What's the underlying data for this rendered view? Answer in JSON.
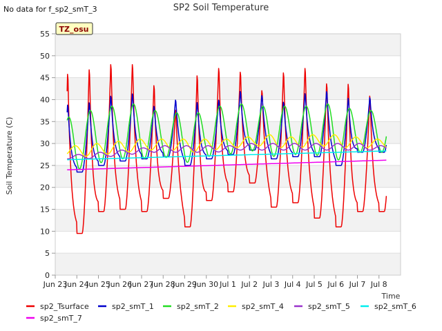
{
  "chart_data": {
    "type": "line",
    "title": "SP2 Soil Temperature",
    "no_data_note": "No data for f_sp2_smT_3",
    "badge": "TZ_osu",
    "xlabel": "Time",
    "ylabel": "Soil Temperature (C)",
    "xlim": [
      0,
      16
    ],
    "ylim": [
      0,
      55
    ],
    "yticks": [
      0,
      5,
      10,
      15,
      20,
      25,
      30,
      35,
      40,
      45,
      50,
      55
    ],
    "xticks": [
      {
        "value": 0,
        "label": "Jun 23"
      },
      {
        "value": 1,
        "label": "Jun 24"
      },
      {
        "value": 2,
        "label": "Jun 25"
      },
      {
        "value": 3,
        "label": "Jun 26"
      },
      {
        "value": 4,
        "label": "Jun 27"
      },
      {
        "value": 5,
        "label": "Jun 28"
      },
      {
        "value": 6,
        "label": "Jun 29"
      },
      {
        "value": 7,
        "label": "Jun 30"
      },
      {
        "value": 8,
        "label": "Jul 1"
      },
      {
        "value": 9,
        "label": "Jul 2"
      },
      {
        "value": 10,
        "label": "Jul 3"
      },
      {
        "value": 11,
        "label": "Jul 4"
      },
      {
        "value": 12,
        "label": "Jul 5"
      },
      {
        "value": 13,
        "label": "Jul 6"
      },
      {
        "value": 14,
        "label": "Jul 7"
      },
      {
        "value": 15,
        "label": "Jul 8"
      }
    ],
    "grid": true,
    "legend_position": "bottom",
    "x_start": 0.55,
    "x_end": 15.35,
    "series": [
      {
        "name": "sp2_Tsurface",
        "color": "#ee0000",
        "profile": "sharp",
        "peaks": [
          47.5,
          48.5,
          49.5,
          49.5,
          44.5,
          38.5,
          47.0,
          48.5,
          47.5,
          43.0,
          47.5,
          48.5,
          45.0,
          45.0,
          42.0
        ],
        "troughs": [
          8.0,
          9.5,
          14.5,
          15.0,
          14.5,
          17.5,
          11.0,
          17.0,
          19.0,
          21.0,
          15.5,
          16.5,
          13.0,
          11.0,
          14.5
        ]
      },
      {
        "name": "sp2_smT_1",
        "color": "#0000cc",
        "profile": "sharp",
        "peaks": [
          39.5,
          40.0,
          41.5,
          42.0,
          39.0,
          40.5,
          40.0,
          40.5,
          42.5,
          41.5,
          40.0,
          42.0,
          42.5,
          41.0,
          41.0
        ],
        "troughs": [
          22.5,
          23.5,
          25.0,
          26.0,
          26.5,
          27.0,
          25.0,
          26.5,
          27.5,
          28.5,
          26.5,
          27.0,
          27.0,
          25.0,
          28.0
        ]
      },
      {
        "name": "sp2_smT_2",
        "color": "#22dd22",
        "profile": "smooth",
        "peaks": [
          36.0,
          37.5,
          38.5,
          39.0,
          37.5,
          37.0,
          37.0,
          38.5,
          39.0,
          38.5,
          38.5,
          38.5,
          39.0,
          38.0,
          37.5
        ],
        "troughs": [
          24.0,
          24.0,
          25.5,
          26.5,
          26.5,
          27.0,
          25.5,
          27.0,
          27.5,
          28.5,
          27.0,
          27.5,
          27.5,
          26.0,
          28.0
        ]
      },
      {
        "name": "sp2_smT_4",
        "color": "#ffee00",
        "profile": "smooth",
        "phase": 0.3,
        "peaks": [
          29.5,
          30.0,
          30.5,
          31.0,
          31.0,
          31.0,
          31.0,
          31.0,
          31.5,
          32.0,
          31.5,
          32.0,
          32.0,
          31.5,
          31.0
        ],
        "troughs": [
          27.5,
          27.0,
          27.5,
          28.0,
          28.5,
          28.5,
          28.0,
          28.5,
          29.0,
          29.5,
          29.0,
          29.0,
          29.5,
          29.0,
          29.0
        ]
      },
      {
        "name": "sp2_smT_5",
        "color": "#9933cc",
        "profile": "smooth",
        "phase": 0.45,
        "peaks": [
          27.5,
          28.0,
          28.5,
          29.0,
          29.5,
          29.5,
          29.5,
          29.5,
          30.0,
          30.0,
          30.0,
          30.0,
          30.0,
          30.0,
          29.5
        ],
        "troughs": [
          26.5,
          26.5,
          27.0,
          27.5,
          28.0,
          28.0,
          28.0,
          28.0,
          28.5,
          28.5,
          28.5,
          28.5,
          28.5,
          28.5,
          28.5
        ]
      },
      {
        "name": "sp2_smT_6",
        "color": "#00eeee",
        "profile": "flat",
        "start": 26.3,
        "end": 28.3
      },
      {
        "name": "sp2_smT_7",
        "color": "#ee00ee",
        "profile": "flat",
        "start": 24.0,
        "end": 26.2
      }
    ]
  }
}
